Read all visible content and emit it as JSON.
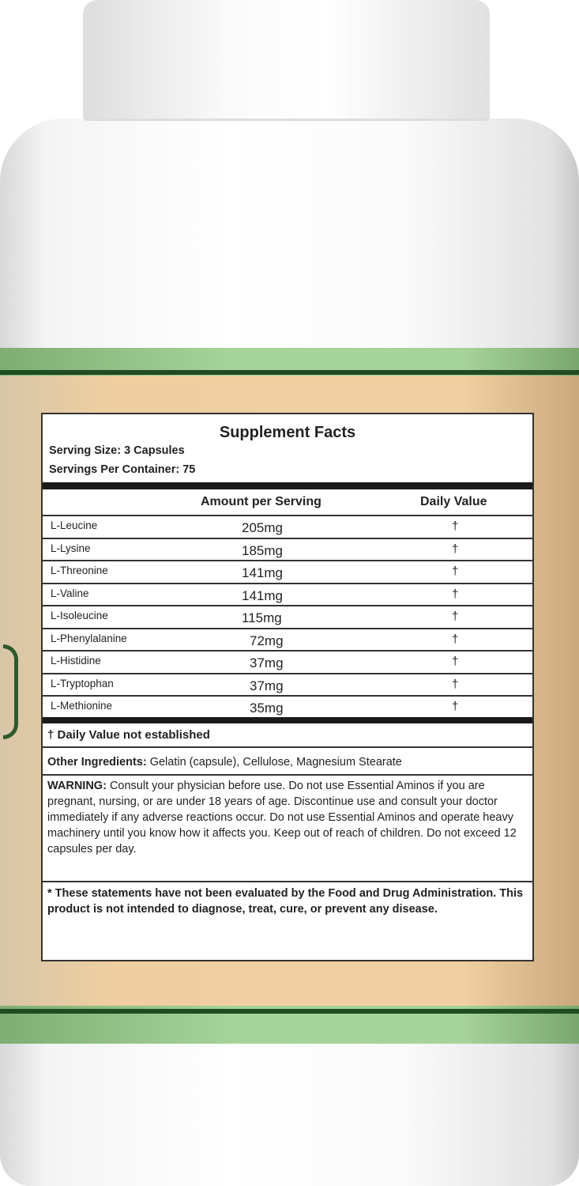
{
  "facts": {
    "title": "Supplement Facts",
    "serving_size": "Serving Size: 3 Capsules",
    "servings_per_container": "Servings Per Container: 75",
    "col_amount": "Amount per Serving",
    "col_dv": "Daily Value",
    "rows": [
      {
        "name": "L-Leucine",
        "amount": "205mg",
        "dv": "†"
      },
      {
        "name": "L-Lysine",
        "amount": "185mg",
        "dv": "†"
      },
      {
        "name": "L-Threonine",
        "amount": "141mg",
        "dv": "†"
      },
      {
        "name": "L-Valine",
        "amount": "141mg",
        "dv": "†"
      },
      {
        "name": "L-Isoleucine",
        "amount": "115mg",
        "dv": "†"
      },
      {
        "name": "L-Phenylalanine",
        "amount": "72mg",
        "dv": "†"
      },
      {
        "name": "L-Histidine",
        "amount": "37mg",
        "dv": "†"
      },
      {
        "name": "L-Tryptophan",
        "amount": "37mg",
        "dv": "†"
      },
      {
        "name": "L-Methionine",
        "amount": "35mg",
        "dv": "†"
      }
    ],
    "dv_note": "† Daily Value not established",
    "other_label": "Other Ingredients:",
    "other_text": " Gelatin (capsule), Cellulose, Magnesium Stearate",
    "warning_label": "WARNING:",
    "warning_text": " Consult your physician before use. Do not use Essential Aminos if you are pregnant, nursing, or are under 18 years of age. Discontinue use and consult your doctor immediately if any adverse reactions occur. Do not use Essential Aminos and operate heavy machinery until you know how it affects you. Keep out of reach of children. Do not exceed 12 capsules per day.",
    "disclaimer": "* These statements have not been evaluated by the Food and Drug Administration. This product is not intended to diagnose, treat, cure, or prevent any disease."
  },
  "colors": {
    "label_tan": "#f0d0a0",
    "band_green": "#a6d39a",
    "dark_green": "#1e4d22"
  }
}
